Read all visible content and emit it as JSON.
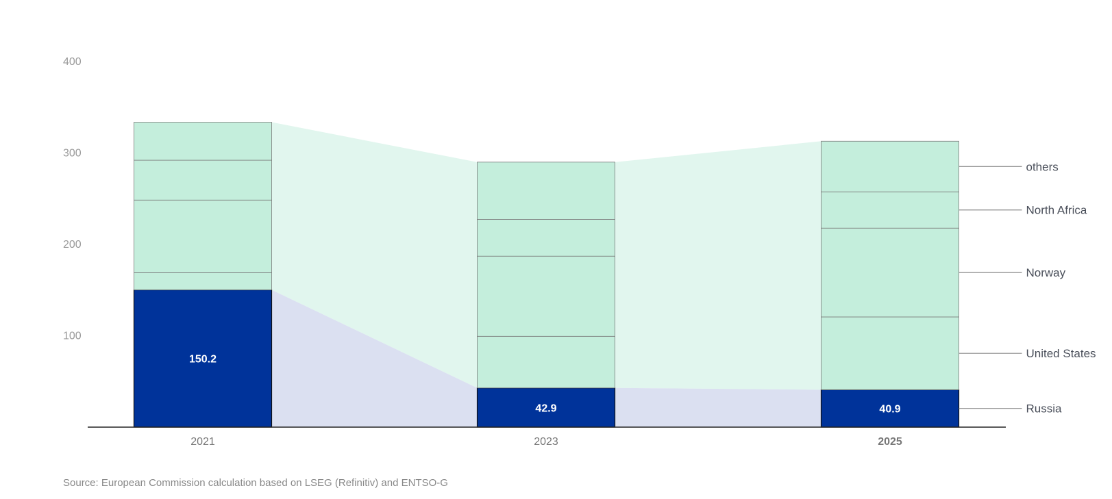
{
  "chart_data": {
    "type": "bar",
    "stacked": true,
    "categories": [
      "2021",
      "2023",
      "2025"
    ],
    "highlight_category": "2025",
    "ylim": [
      0,
      400
    ],
    "yticks": [
      100,
      200,
      300,
      400
    ],
    "grid": false,
    "series": [
      {
        "name": "Russia",
        "values": [
          150.2,
          42.9,
          40.9
        ],
        "color": "#00339a",
        "show_labels": true
      },
      {
        "name": "United States",
        "values": [
          18.8,
          56.5,
          79.7
        ],
        "color": "#c4eedc"
      },
      {
        "name": "Norway",
        "values": [
          79.5,
          87.7,
          97.2
        ],
        "color": "#c4eedc"
      },
      {
        "name": "North Africa",
        "values": [
          43.6,
          40.3,
          39.7
        ],
        "color": "#c4eedc"
      },
      {
        "name": "others",
        "values": [
          41.6,
          62.6,
          55.4
        ],
        "color": "#c4eedc"
      }
    ],
    "band_colors": {
      "Russia": "#dbe0f1",
      "others": "#e1f6ee"
    },
    "legend_placement": "right"
  },
  "source": "Source: European Commission calculation based on LSEG (Refinitiv) and ENTSO-G"
}
